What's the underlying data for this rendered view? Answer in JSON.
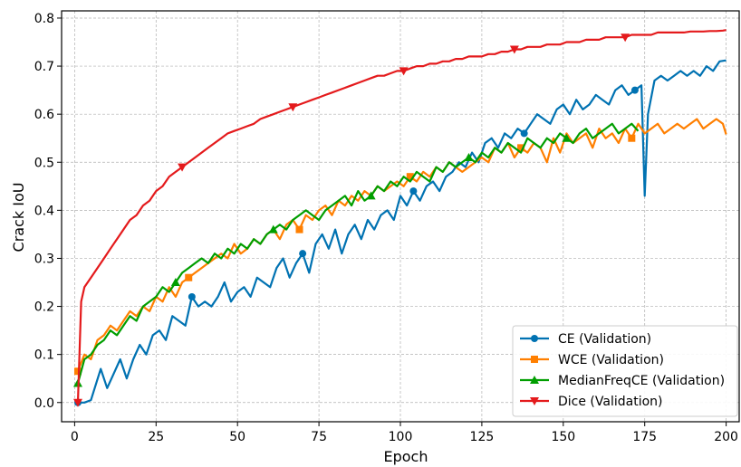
{
  "chart_data": {
    "type": "line",
    "xlabel": "Epoch",
    "ylabel": "Crack IoU",
    "xlim": [
      -4,
      204
    ],
    "ylim": [
      -0.04,
      0.815
    ],
    "xticks": [
      0,
      25,
      50,
      75,
      100,
      125,
      150,
      175,
      200
    ],
    "yticks": [
      0.0,
      0.1,
      0.2,
      0.3,
      0.4,
      0.5,
      0.6,
      0.7,
      0.8
    ],
    "grid": true,
    "legend_position": "lower-right",
    "series": [
      {
        "name": "CE (Validation)",
        "color": "#0072b2",
        "marker": "circle",
        "x": [
          1,
          3,
          5,
          8,
          10,
          12,
          14,
          16,
          18,
          20,
          22,
          24,
          26,
          28,
          30,
          32,
          34,
          36,
          38,
          40,
          42,
          44,
          46,
          48,
          50,
          52,
          54,
          56,
          58,
          60,
          62,
          64,
          66,
          68,
          70,
          72,
          74,
          76,
          78,
          80,
          82,
          84,
          86,
          88,
          90,
          92,
          94,
          96,
          98,
          100,
          102,
          104,
          106,
          108,
          110,
          112,
          114,
          116,
          118,
          120,
          122,
          124,
          126,
          128,
          130,
          132,
          134,
          136,
          138,
          140,
          142,
          144,
          146,
          148,
          150,
          152,
          154,
          156,
          158,
          160,
          162,
          164,
          166,
          168,
          170,
          172,
          174,
          175,
          176,
          178,
          180,
          182,
          184,
          186,
          188,
          190,
          192,
          194,
          196,
          198,
          200
        ],
        "values": [
          0.0,
          0.0,
          0.005,
          0.07,
          0.03,
          0.06,
          0.09,
          0.05,
          0.09,
          0.12,
          0.1,
          0.14,
          0.15,
          0.13,
          0.18,
          0.17,
          0.16,
          0.22,
          0.2,
          0.21,
          0.2,
          0.22,
          0.25,
          0.21,
          0.23,
          0.24,
          0.22,
          0.26,
          0.25,
          0.24,
          0.28,
          0.3,
          0.26,
          0.29,
          0.31,
          0.27,
          0.33,
          0.35,
          0.32,
          0.36,
          0.31,
          0.35,
          0.37,
          0.34,
          0.38,
          0.36,
          0.39,
          0.4,
          0.38,
          0.43,
          0.41,
          0.44,
          0.42,
          0.45,
          0.46,
          0.44,
          0.47,
          0.48,
          0.5,
          0.49,
          0.52,
          0.5,
          0.54,
          0.55,
          0.53,
          0.56,
          0.55,
          0.57,
          0.56,
          0.58,
          0.6,
          0.59,
          0.58,
          0.61,
          0.62,
          0.6,
          0.63,
          0.61,
          0.62,
          0.64,
          0.63,
          0.62,
          0.65,
          0.66,
          0.64,
          0.65,
          0.66,
          0.43,
          0.6,
          0.67,
          0.68,
          0.67,
          0.68,
          0.69,
          0.68,
          0.69,
          0.68,
          0.7,
          0.69,
          0.71,
          0.712
        ]
      },
      {
        "name": "WCE (Validation)",
        "color": "#ff7f00",
        "marker": "square",
        "x": [
          1,
          3,
          5,
          7,
          9,
          11,
          13,
          15,
          17,
          19,
          21,
          23,
          25,
          27,
          29,
          31,
          33,
          35,
          37,
          39,
          41,
          43,
          45,
          47,
          49,
          51,
          53,
          55,
          57,
          59,
          61,
          63,
          65,
          67,
          69,
          71,
          73,
          75,
          77,
          79,
          81,
          83,
          85,
          87,
          89,
          91,
          93,
          95,
          97,
          99,
          101,
          103,
          105,
          107,
          109,
          111,
          113,
          115,
          117,
          119,
          121,
          123,
          125,
          127,
          129,
          131,
          133,
          135,
          137,
          139,
          141,
          143,
          145,
          147,
          149,
          151,
          153,
          155,
          157,
          159,
          161,
          163,
          165,
          167,
          169,
          171,
          173,
          175,
          177,
          179,
          181,
          183,
          185,
          187,
          189,
          191,
          193,
          195,
          197,
          199,
          200
        ],
        "values": [
          0.065,
          0.1,
          0.09,
          0.13,
          0.14,
          0.16,
          0.15,
          0.17,
          0.19,
          0.18,
          0.2,
          0.19,
          0.22,
          0.21,
          0.24,
          0.22,
          0.25,
          0.26,
          0.27,
          0.28,
          0.29,
          0.3,
          0.31,
          0.3,
          0.33,
          0.31,
          0.32,
          0.34,
          0.33,
          0.35,
          0.36,
          0.34,
          0.37,
          0.38,
          0.36,
          0.39,
          0.38,
          0.4,
          0.41,
          0.39,
          0.42,
          0.41,
          0.43,
          0.42,
          0.44,
          0.43,
          0.45,
          0.44,
          0.45,
          0.46,
          0.45,
          0.47,
          0.46,
          0.48,
          0.47,
          0.49,
          0.48,
          0.5,
          0.49,
          0.48,
          0.49,
          0.5,
          0.51,
          0.5,
          0.53,
          0.52,
          0.54,
          0.51,
          0.53,
          0.52,
          0.54,
          0.53,
          0.5,
          0.55,
          0.52,
          0.56,
          0.54,
          0.55,
          0.56,
          0.53,
          0.57,
          0.55,
          0.56,
          0.54,
          0.57,
          0.55,
          0.58,
          0.56,
          0.57,
          0.58,
          0.56,
          0.57,
          0.58,
          0.57,
          0.58,
          0.59,
          0.57,
          0.58,
          0.59,
          0.58,
          0.558
        ]
      },
      {
        "name": "MedianFreqCE (Validation)",
        "color": "#009e00",
        "marker": "triangle-up",
        "x": [
          1,
          3,
          5,
          7,
          9,
          11,
          13,
          15,
          17,
          19,
          21,
          23,
          25,
          27,
          29,
          31,
          33,
          35,
          37,
          39,
          41,
          43,
          45,
          47,
          49,
          51,
          53,
          55,
          57,
          59,
          61,
          63,
          65,
          67,
          69,
          71,
          73,
          75,
          77,
          79,
          81,
          83,
          85,
          87,
          89,
          91,
          93,
          95,
          97,
          99,
          101,
          103,
          105,
          107,
          109,
          111,
          113,
          115,
          117,
          119,
          121,
          123,
          125,
          127,
          129,
          131,
          133,
          135,
          137,
          139,
          141,
          143,
          145,
          147,
          149,
          151,
          153,
          155,
          157,
          159,
          161,
          163,
          165,
          167,
          169,
          171,
          173
        ],
        "values": [
          0.04,
          0.09,
          0.1,
          0.12,
          0.13,
          0.15,
          0.14,
          0.16,
          0.18,
          0.17,
          0.2,
          0.21,
          0.22,
          0.24,
          0.23,
          0.25,
          0.27,
          0.28,
          0.29,
          0.3,
          0.29,
          0.31,
          0.3,
          0.32,
          0.31,
          0.33,
          0.32,
          0.34,
          0.33,
          0.35,
          0.36,
          0.37,
          0.36,
          0.38,
          0.39,
          0.4,
          0.39,
          0.38,
          0.4,
          0.41,
          0.42,
          0.43,
          0.41,
          0.44,
          0.42,
          0.43,
          0.45,
          0.44,
          0.46,
          0.45,
          0.47,
          0.46,
          0.48,
          0.47,
          0.46,
          0.49,
          0.48,
          0.5,
          0.49,
          0.5,
          0.51,
          0.5,
          0.52,
          0.51,
          0.53,
          0.52,
          0.54,
          0.53,
          0.52,
          0.55,
          0.54,
          0.53,
          0.55,
          0.54,
          0.56,
          0.55,
          0.54,
          0.56,
          0.57,
          0.55,
          0.56,
          0.57,
          0.58,
          0.56,
          0.57,
          0.58,
          0.565
        ]
      },
      {
        "name": "Dice (Validation)",
        "color": "#e41a1c",
        "marker": "triangle-down",
        "x": [
          1,
          2,
          3,
          5,
          7,
          9,
          11,
          13,
          15,
          17,
          19,
          21,
          23,
          25,
          27,
          29,
          31,
          33,
          35,
          37,
          39,
          41,
          43,
          45,
          47,
          49,
          51,
          53,
          55,
          57,
          59,
          61,
          63,
          65,
          67,
          69,
          71,
          73,
          75,
          77,
          79,
          81,
          83,
          85,
          87,
          89,
          91,
          93,
          95,
          97,
          99,
          101,
          103,
          105,
          107,
          109,
          111,
          113,
          115,
          117,
          119,
          121,
          123,
          125,
          127,
          129,
          131,
          133,
          135,
          137,
          139,
          141,
          143,
          145,
          147,
          149,
          151,
          153,
          155,
          157,
          159,
          161,
          163,
          165,
          167,
          169,
          171,
          173,
          175,
          177,
          179,
          181,
          183,
          185,
          187,
          189,
          191,
          193,
          195,
          197,
          199,
          200
        ],
        "values": [
          0.0,
          0.21,
          0.24,
          0.26,
          0.28,
          0.3,
          0.32,
          0.34,
          0.36,
          0.38,
          0.39,
          0.41,
          0.42,
          0.44,
          0.45,
          0.47,
          0.48,
          0.49,
          0.5,
          0.51,
          0.52,
          0.53,
          0.54,
          0.55,
          0.56,
          0.565,
          0.57,
          0.575,
          0.58,
          0.59,
          0.595,
          0.6,
          0.605,
          0.61,
          0.615,
          0.62,
          0.625,
          0.63,
          0.635,
          0.64,
          0.645,
          0.65,
          0.655,
          0.66,
          0.665,
          0.67,
          0.675,
          0.68,
          0.68,
          0.685,
          0.69,
          0.69,
          0.695,
          0.7,
          0.7,
          0.705,
          0.705,
          0.71,
          0.71,
          0.715,
          0.715,
          0.72,
          0.72,
          0.72,
          0.725,
          0.725,
          0.73,
          0.73,
          0.735,
          0.735,
          0.74,
          0.74,
          0.74,
          0.745,
          0.745,
          0.745,
          0.75,
          0.75,
          0.75,
          0.755,
          0.755,
          0.755,
          0.76,
          0.76,
          0.76,
          0.76,
          0.765,
          0.765,
          0.765,
          0.765,
          0.77,
          0.77,
          0.77,
          0.77,
          0.77,
          0.772,
          0.772,
          0.772,
          0.773,
          0.773,
          0.774,
          0.775
        ]
      }
    ]
  }
}
